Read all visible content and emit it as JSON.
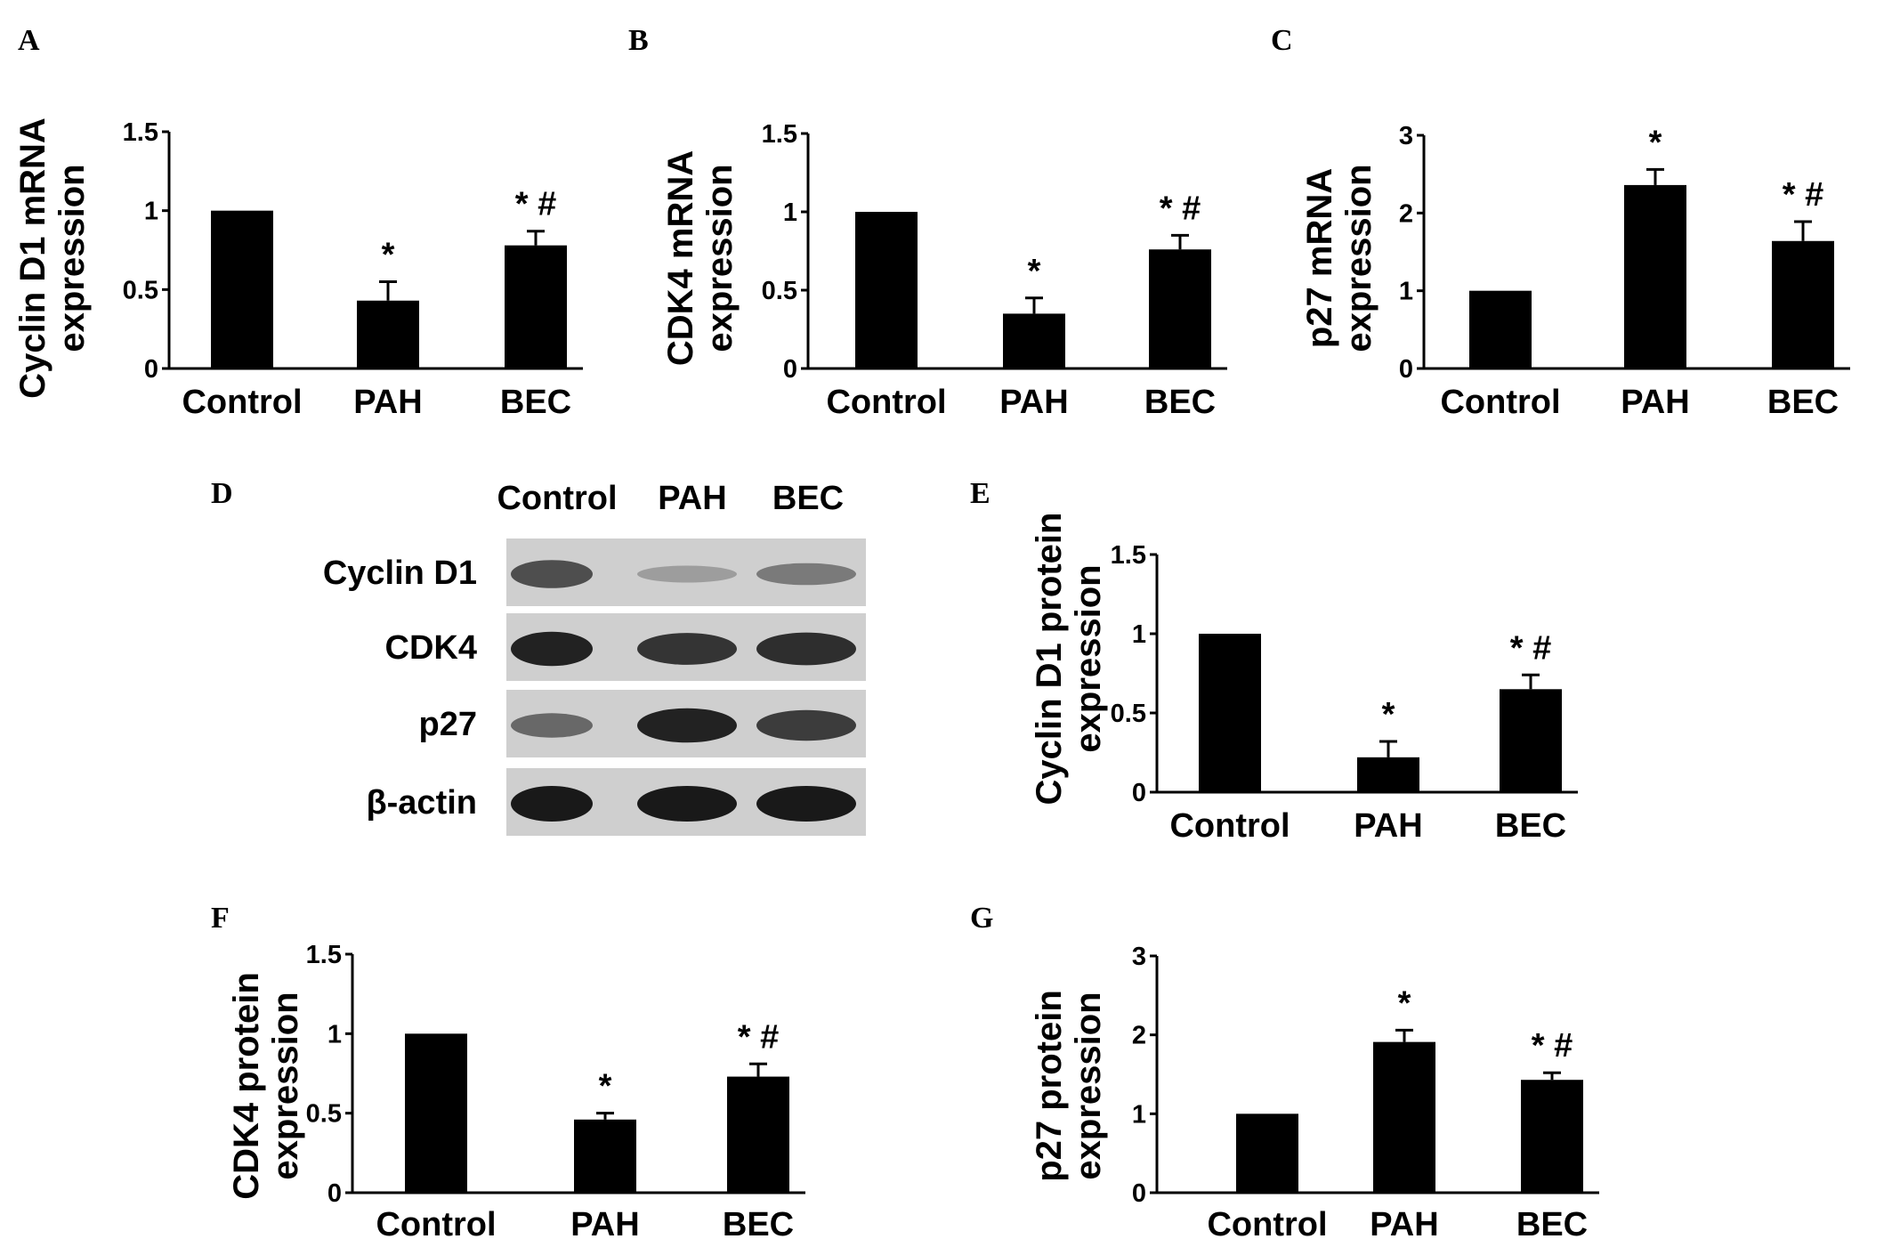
{
  "categories": [
    "Control",
    "PAH",
    "BEC"
  ],
  "chart_data": [
    {
      "panel": "A",
      "type": "bar",
      "ylabel_lines": [
        "Cyclin D1 mRNA",
        "expression"
      ],
      "yticks": [
        "0",
        "0.5",
        "1",
        "1.5"
      ],
      "ylim": [
        0,
        1.5
      ],
      "values": [
        1.0,
        0.43,
        0.78
      ],
      "errors": [
        0,
        0.12,
        0.09
      ],
      "annotations": [
        "",
        "*",
        "* #"
      ]
    },
    {
      "panel": "B",
      "type": "bar",
      "ylabel_lines": [
        "CDK4 mRNA",
        "expression"
      ],
      "yticks": [
        "0",
        "0.5",
        "1",
        "1.5"
      ],
      "ylim": [
        0,
        1.5
      ],
      "values": [
        1.0,
        0.35,
        0.76
      ],
      "errors": [
        0,
        0.1,
        0.09
      ],
      "annotations": [
        "",
        "*",
        "* #"
      ]
    },
    {
      "panel": "C",
      "type": "bar",
      "ylabel_lines": [
        "p27 mRNA",
        "expression"
      ],
      "yticks": [
        "0",
        "1",
        "2",
        "3"
      ],
      "ylim": [
        0,
        3
      ],
      "values": [
        1.0,
        2.36,
        1.64
      ],
      "errors": [
        0,
        0.2,
        0.25
      ],
      "annotations": [
        "",
        "*",
        "* #"
      ]
    },
    {
      "panel": "E",
      "type": "bar",
      "ylabel_lines": [
        "Cyclin D1 protein",
        "expression"
      ],
      "yticks": [
        "0",
        "0.5",
        "1",
        "1.5"
      ],
      "ylim": [
        0,
        1.5
      ],
      "values": [
        1.0,
        0.22,
        0.65
      ],
      "errors": [
        0,
        0.1,
        0.09
      ],
      "annotations": [
        "",
        "*",
        "* #"
      ]
    },
    {
      "panel": "F",
      "type": "bar",
      "ylabel_lines": [
        "CDK4 protein",
        "expression"
      ],
      "yticks": [
        "0",
        "0.5",
        "1",
        "1.5"
      ],
      "ylim": [
        0,
        1.5
      ],
      "values": [
        1.0,
        0.46,
        0.73
      ],
      "errors": [
        0,
        0.04,
        0.08
      ],
      "annotations": [
        "",
        "*",
        "* #"
      ]
    },
    {
      "panel": "G",
      "type": "bar",
      "ylabel_lines": [
        "p27 protein",
        "expression"
      ],
      "yticks": [
        "0",
        "1",
        "2",
        "3"
      ],
      "ylim": [
        0,
        3
      ],
      "values": [
        1.0,
        1.91,
        1.43
      ],
      "errors": [
        0,
        0.15,
        0.09
      ],
      "annotations": [
        "",
        "*",
        "* #"
      ]
    }
  ],
  "blot": {
    "panel": "D",
    "columns": [
      "Control",
      "PAH",
      "BEC"
    ],
    "rows": [
      {
        "label": "Cyclin D1",
        "intensity": [
          0.7,
          0.25,
          0.45
        ]
      },
      {
        "label": "CDK4",
        "intensity": [
          0.95,
          0.85,
          0.88
        ]
      },
      {
        "label": "p27",
        "intensity": [
          0.55,
          0.95,
          0.8
        ]
      },
      {
        "label": "β-actin",
        "intensity": [
          1.0,
          1.0,
          1.0
        ]
      }
    ]
  }
}
